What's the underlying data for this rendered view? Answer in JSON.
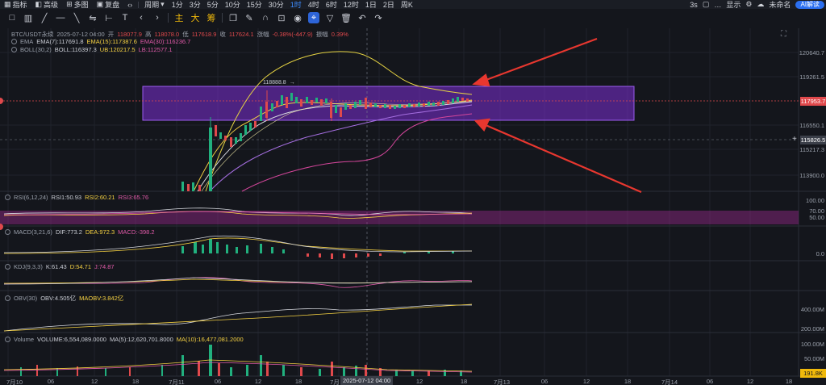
{
  "topbar": {
    "items": [
      "指标",
      "高级",
      "多图",
      "复盘",
      "周期",
      "1分",
      "3分",
      "5分",
      "10分",
      "15分",
      "30分",
      "1时",
      "4时",
      "6时",
      "12时",
      "1日",
      "2日",
      "周K"
    ],
    "active_tf": "1时",
    "right": {
      "timer": "3s",
      "display": "显示",
      "user": "未命名",
      "ai": "AI解读"
    }
  },
  "toolbar": {
    "labels": [
      "主",
      "大",
      "筹"
    ]
  },
  "main_legend": {
    "symbol": "BTC/USDT永续",
    "time": "2025-07-12 04:00",
    "open_lbl": "开",
    "open": "118077.9",
    "high_lbl": "高",
    "high": "118078.0",
    "low_lbl": "低",
    "low": "117618.9",
    "close_lbl": "收",
    "close": "117624.1",
    "chg_lbl": "涨幅",
    "chg": "-0.38%(-447.9)",
    "amp_lbl": "振幅",
    "amp": "0.39%"
  },
  "ema_legend": {
    "name": "EMA",
    "ema7": "EMA(7):117691.8",
    "ema15": "EMA(15):117387.6",
    "ema30": "EMA(30):116236.7"
  },
  "boll_legend": {
    "name": "BOLL(30,2)",
    "boll": "BOLL:116397.3",
    "ub": "UB:120217.5",
    "lb": "LB:112577.1"
  },
  "rsi_legend": {
    "name": "RSI(6,12,24)",
    "rsi1": "RSI1:50.93",
    "rsi2": "RSI2:60.21",
    "rsi3": "RSI3:65.76"
  },
  "macd_legend": {
    "name": "MACD(3,21,6)",
    "dif": "DIF:773.2",
    "dea": "DEA:972.3",
    "macd": "MACD:-398.2"
  },
  "kdj_legend": {
    "name": "KDJ(9,3,3)",
    "k": "K:61.43",
    "d": "D:54.71",
    "j": "J:74.87"
  },
  "obv_legend": {
    "name": "OBV(30)",
    "obv": "OBV:4.505亿",
    "maobv": "MAOBV:3.842亿"
  },
  "vol_legend": {
    "name": "Volume",
    "vol": "VOLUME:6,554,089.0000",
    "ma5": "MA(5):12,620,701.8000",
    "ma10": "MA(10):16,477,081.2000"
  },
  "price_axis": {
    "labels": [
      "120640.7",
      "119261.5",
      "116550.1",
      "115217.3",
      "113900.0"
    ],
    "current": "117953.7",
    "crosshair": "115826.5",
    "high_marker": "118888.8"
  },
  "rsi_axis": [
    "100.00",
    "70.00",
    "50.00"
  ],
  "macd_axis": [
    "0.0"
  ],
  "obv_axis": [
    "400.00M",
    "200.00M"
  ],
  "vol_axis": [
    "100.00M",
    "50.00M"
  ],
  "vol_current": "191.8K",
  "time_axis": {
    "labels": [
      "7月10",
      "06",
      "12",
      "18",
      "7月11",
      "06",
      "12",
      "18",
      "7月",
      "12",
      "18",
      "7月13",
      "06",
      "12",
      "18",
      "7月14",
      "06",
      "12",
      "18"
    ],
    "crosshair": "2025-07-12 04:00"
  },
  "colors": {
    "up": "#21b07e",
    "down": "#e0494c",
    "highlight_box": "#7b2fd6",
    "arrow": "#e8372f",
    "active": "#3d8bfd"
  }
}
